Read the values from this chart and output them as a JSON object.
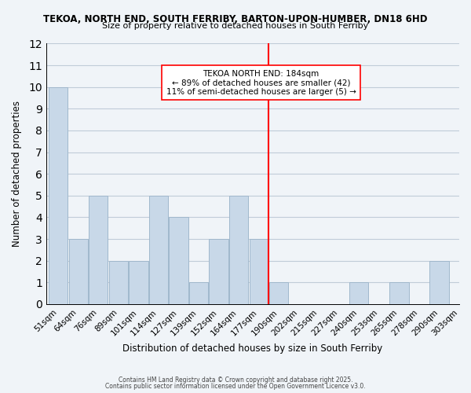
{
  "title1": "TEKOA, NORTH END, SOUTH FERRIBY, BARTON-UPON-HUMBER, DN18 6HD",
  "title2": "Size of property relative to detached houses in South Ferriby",
  "xlabel": "Distribution of detached houses by size in South Ferriby",
  "ylabel": "Number of detached properties",
  "bins": [
    "51sqm",
    "64sqm",
    "76sqm",
    "89sqm",
    "101sqm",
    "114sqm",
    "127sqm",
    "139sqm",
    "152sqm",
    "164sqm",
    "177sqm",
    "190sqm",
    "202sqm",
    "215sqm",
    "227sqm",
    "240sqm",
    "253sqm",
    "265sqm",
    "278sqm",
    "290sqm",
    "303sqm"
  ],
  "bar_heights": [
    10,
    3,
    5,
    2,
    2,
    5,
    4,
    1,
    3,
    5,
    3,
    1,
    0,
    0,
    0,
    1,
    0,
    1,
    0,
    2
  ],
  "bar_color": "#c8d8e8",
  "bar_edge_color": "#a0b8cc",
  "grid_color": "#c0ccd8",
  "vline_x_index": 10.5,
  "vline_color": "red",
  "annotation_title": "TEKOA NORTH END: 184sqm",
  "annotation_line1": "← 89% of detached houses are smaller (42)",
  "annotation_line2": "11% of semi-detached houses are larger (5) →",
  "annotation_box_color": "white",
  "annotation_box_edge_color": "red",
  "ylim": [
    0,
    12
  ],
  "yticks": [
    0,
    1,
    2,
    3,
    4,
    5,
    6,
    7,
    8,
    9,
    10,
    11,
    12
  ],
  "footnote1": "Contains HM Land Registry data © Crown copyright and database right 2025.",
  "footnote2": "Contains public sector information licensed under the Open Government Licence v3.0.",
  "background_color": "#f0f4f8"
}
